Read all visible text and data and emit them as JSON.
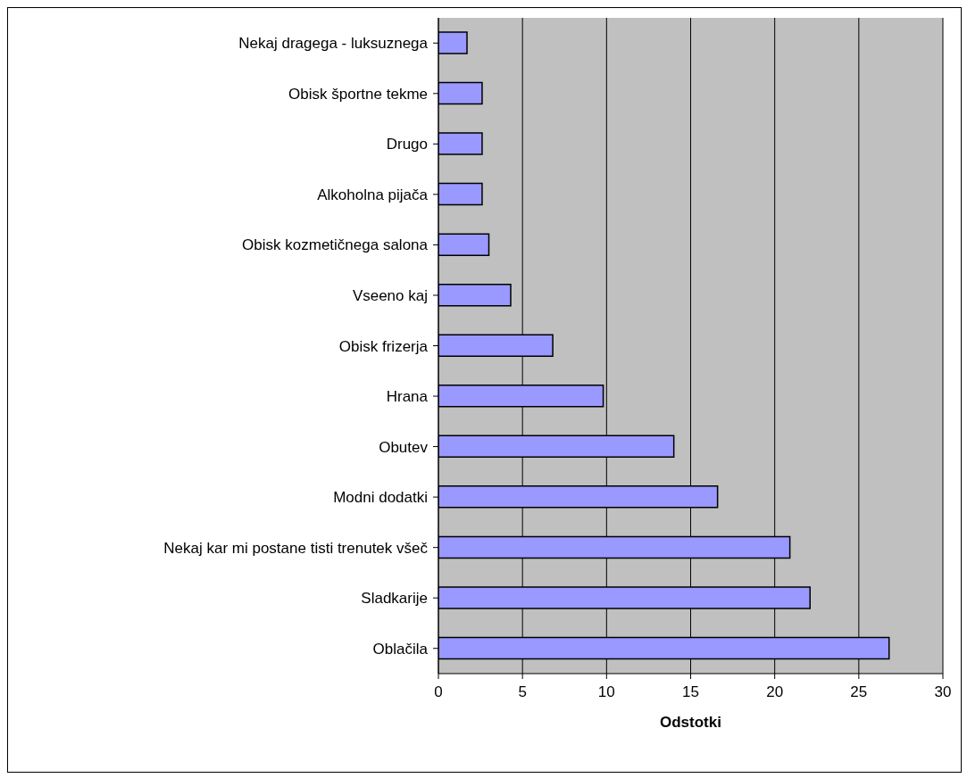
{
  "chart_data": {
    "type": "bar",
    "orientation": "horizontal",
    "xlabel": "Odstotki",
    "categories": [
      "Nekaj dragega - luksuznega",
      "Obisk športne tekme",
      "Drugo",
      "Alkoholna pijača",
      "Obisk kozmetičnega salona",
      "Vseeno kaj",
      "Obisk frizerja",
      "Hrana",
      "Obutev",
      "Modni dodatki",
      "Nekaj kar mi postane tisti trenutek všeč",
      "Sladkarije",
      "Oblačila"
    ],
    "values": [
      1.7,
      2.6,
      2.6,
      2.6,
      3.0,
      4.3,
      6.8,
      9.8,
      14.0,
      16.6,
      20.9,
      22.1,
      26.8
    ],
    "color": "#9999ff",
    "xlim": [
      0,
      30
    ],
    "xticks": [
      0,
      5,
      10,
      15,
      20,
      25,
      30
    ],
    "grid": "x",
    "legend": false
  }
}
